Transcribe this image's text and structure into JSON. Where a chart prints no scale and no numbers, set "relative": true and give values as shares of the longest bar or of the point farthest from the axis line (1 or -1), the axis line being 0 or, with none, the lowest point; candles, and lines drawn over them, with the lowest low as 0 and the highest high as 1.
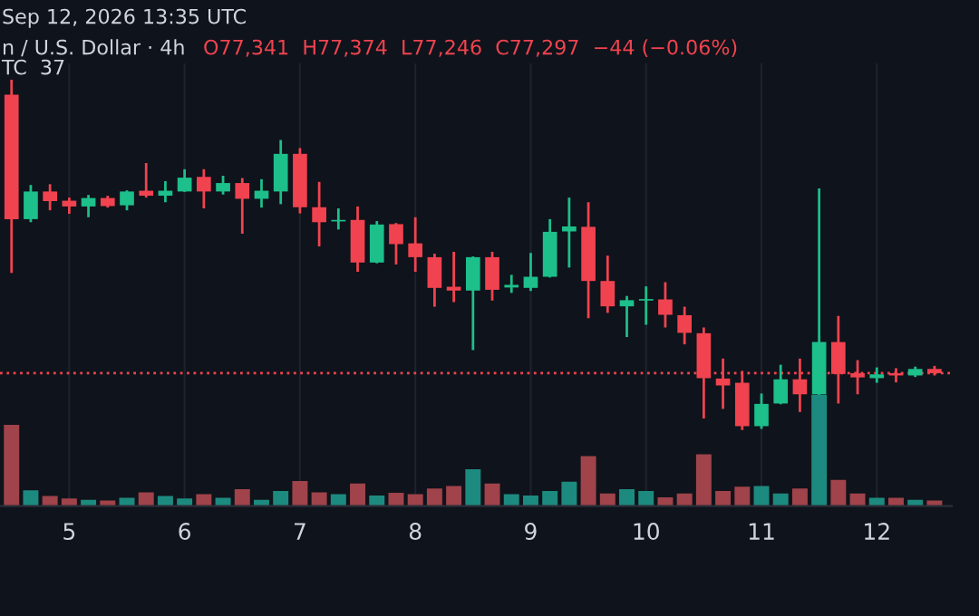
{
  "chart_data": [
    {
      "type": "candlestick",
      "relative": true,
      "grid": "x",
      "tick_labels": "x",
      "categories": [
        null,
        null,
        null,
        "5",
        null,
        null,
        null,
        null,
        null,
        "6",
        null,
        null,
        null,
        null,
        null,
        "7",
        null,
        null,
        null,
        null,
        null,
        "8",
        null,
        null,
        null,
        null,
        null,
        "9",
        null,
        null,
        null,
        null,
        null,
        "10",
        null,
        null,
        null,
        null,
        null,
        "11",
        null,
        null,
        null,
        null,
        null,
        "12",
        null,
        null,
        null
      ],
      "ohlc": [
        [
          0.961,
          1.0,
          0.497,
          0.637
        ],
        [
          0.637,
          0.726,
          0.629,
          0.709
        ],
        [
          0.709,
          0.728,
          0.66,
          0.684
        ],
        [
          0.685,
          0.693,
          0.651,
          0.67
        ],
        [
          0.67,
          0.7,
          0.642,
          0.692
        ],
        [
          0.692,
          0.698,
          0.667,
          0.671
        ],
        [
          0.673,
          0.712,
          0.66,
          0.709
        ],
        [
          0.711,
          0.783,
          0.693,
          0.698
        ],
        [
          0.698,
          0.736,
          0.681,
          0.711
        ],
        [
          0.709,
          0.767,
          0.708,
          0.745
        ],
        [
          0.747,
          0.767,
          0.665,
          0.709
        ],
        [
          0.709,
          0.75,
          0.701,
          0.731
        ],
        [
          0.731,
          0.744,
          0.599,
          0.69
        ],
        [
          0.69,
          0.741,
          0.667,
          0.711
        ],
        [
          0.709,
          0.843,
          0.676,
          0.807
        ],
        [
          0.807,
          0.822,
          0.652,
          0.668
        ],
        [
          0.668,
          0.734,
          0.566,
          0.629
        ],
        [
          0.631,
          0.665,
          0.61,
          0.635
        ],
        [
          0.635,
          0.67,
          0.5,
          0.524
        ],
        [
          0.524,
          0.632,
          0.522,
          0.623
        ],
        [
          0.624,
          0.627,
          0.519,
          0.572
        ],
        [
          0.574,
          0.642,
          0.5,
          0.538
        ],
        [
          0.538,
          0.547,
          0.409,
          0.458
        ],
        [
          0.461,
          0.552,
          0.421,
          0.451
        ],
        [
          0.451,
          0.54,
          0.296,
          0.538
        ],
        [
          0.538,
          0.552,
          0.425,
          0.453
        ],
        [
          0.459,
          0.492,
          0.445,
          0.466
        ],
        [
          0.458,
          0.549,
          0.45,
          0.487
        ],
        [
          0.487,
          0.637,
          0.485,
          0.604
        ],
        [
          0.605,
          0.693,
          0.511,
          0.618
        ],
        [
          0.617,
          0.681,
          0.379,
          0.476
        ],
        [
          0.476,
          0.542,
          0.393,
          0.41
        ],
        [
          0.41,
          0.437,
          0.33,
          0.426
        ],
        [
          0.425,
          0.462,
          0.362,
          0.428
        ],
        [
          0.428,
          0.473,
          0.355,
          0.388
        ],
        [
          0.387,
          0.409,
          0.311,
          0.341
        ],
        [
          0.34,
          0.355,
          0.118,
          0.223
        ],
        [
          0.222,
          0.274,
          0.143,
          0.204
        ],
        [
          0.211,
          0.242,
          0.088,
          0.098
        ],
        [
          0.098,
          0.183,
          0.091,
          0.156
        ],
        [
          0.157,
          0.258,
          0.155,
          0.22
        ],
        [
          0.22,
          0.274,
          0.135,
          0.181
        ],
        [
          0.181,
          0.717,
          0.0,
          0.317
        ],
        [
          0.317,
          0.385,
          0.157,
          0.234
        ],
        [
          0.236,
          0.27,
          0.181,
          0.225
        ],
        [
          0.223,
          0.251,
          0.211,
          0.233
        ],
        [
          0.236,
          0.249,
          0.212,
          0.23
        ],
        [
          0.23,
          0.253,
          0.226,
          0.247
        ],
        [
          0.247,
          0.255,
          0.23,
          0.236
        ]
      ],
      "colors": [
        "#f0434f",
        "#1dbf8a",
        "#f0434f",
        "#f0434f",
        "#1dbf8a",
        "#f0434f",
        "#1dbf8a",
        "#f0434f",
        "#1dbf8a",
        "#1dbf8a",
        "#f0434f",
        "#1dbf8a",
        "#f0434f",
        "#1dbf8a",
        "#1dbf8a",
        "#f0434f",
        "#f0434f",
        "#1dbf8a",
        "#f0434f",
        "#1dbf8a",
        "#f0434f",
        "#f0434f",
        "#f0434f",
        "#f0434f",
        "#1dbf8a",
        "#f0434f",
        "#1dbf8a",
        "#1dbf8a",
        "#1dbf8a",
        "#1dbf8a",
        "#f0434f",
        "#f0434f",
        "#1dbf8a",
        "#1dbf8a",
        "#f0434f",
        "#f0434f",
        "#f0434f",
        "#f0434f",
        "#f0434f",
        "#1dbf8a",
        "#1dbf8a",
        "#f0434f",
        "#1dbf8a",
        "#f0434f",
        "#f0434f",
        "#1dbf8a",
        "#f0434f",
        "#1dbf8a",
        "#f0434f"
      ],
      "ref_lines": [
        {
          "axis": "y",
          "value": 0.236,
          "color": "#f0434f",
          "line_style": "dotted"
        }
      ],
      "annotations": [
        "Sep 12, 2026 13:35 UTC",
        "n / U.S. Dollar · 4h",
        "O77,341  H77,374  L77,246  C77,297  −44 (−0.06%)",
        "TC  37"
      ]
    },
    {
      "type": "bar",
      "relative": true,
      "tick_labels": false,
      "categories": [
        null,
        null,
        null,
        null,
        null,
        null,
        null,
        null,
        null,
        null,
        null,
        null,
        null,
        null,
        null,
        null,
        null,
        null,
        null,
        null,
        null,
        null,
        null,
        null,
        null,
        null,
        null,
        null,
        null,
        null,
        null,
        null,
        null,
        null,
        null,
        null,
        null,
        null,
        null,
        null,
        null,
        null,
        null,
        null,
        null,
        null,
        null,
        null,
        null
      ],
      "values": [
        0.727,
        0.14,
        0.09,
        0.067,
        0.056,
        0.05,
        0.073,
        0.123,
        0.09,
        0.067,
        0.106,
        0.073,
        0.151,
        0.056,
        0.134,
        0.224,
        0.123,
        0.106,
        0.201,
        0.095,
        0.118,
        0.106,
        0.157,
        0.179,
        0.33,
        0.201,
        0.106,
        0.095,
        0.134,
        0.218,
        0.448,
        0.112,
        0.151,
        0.134,
        0.078,
        0.112,
        0.464,
        0.134,
        0.173,
        0.179,
        0.112,
        0.157,
        1.0,
        0.235,
        0.112,
        0.073,
        0.073,
        0.056,
        0.05
      ],
      "colors": [
        "#a0434a",
        "#1d8a7f",
        "#a0434a",
        "#a0434a",
        "#1d8a7f",
        "#a0434a",
        "#1d8a7f",
        "#a0434a",
        "#1d8a7f",
        "#1d8a7f",
        "#a0434a",
        "#1d8a7f",
        "#a0434a",
        "#1d8a7f",
        "#1d8a7f",
        "#a0434a",
        "#a0434a",
        "#1d8a7f",
        "#a0434a",
        "#1d8a7f",
        "#a0434a",
        "#a0434a",
        "#a0434a",
        "#a0434a",
        "#1d8a7f",
        "#a0434a",
        "#1d8a7f",
        "#1d8a7f",
        "#1d8a7f",
        "#1d8a7f",
        "#a0434a",
        "#a0434a",
        "#1d8a7f",
        "#1d8a7f",
        "#a0434a",
        "#a0434a",
        "#a0434a",
        "#a0434a",
        "#a0434a",
        "#1d8a7f",
        "#1d8a7f",
        "#a0434a",
        "#1d8a7f",
        "#a0434a",
        "#a0434a",
        "#1d8a7f",
        "#a0434a",
        "#1d8a7f",
        "#a0434a"
      ]
    }
  ]
}
